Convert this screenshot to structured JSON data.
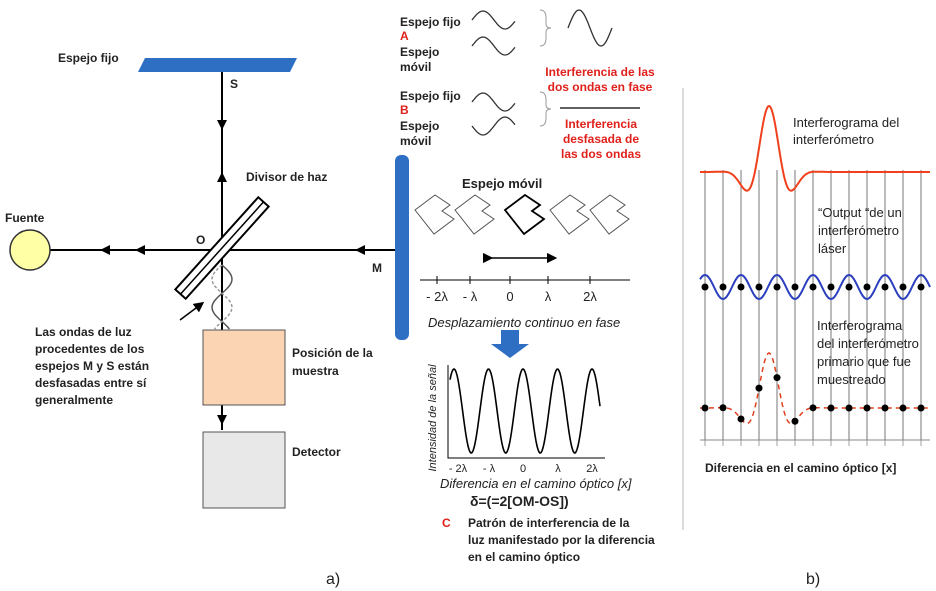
{
  "panel_a": {
    "fixed_mirror": "Espejo fijo",
    "s": "S",
    "beam_splitter": "Divisor de haz",
    "source": "Fuente",
    "o": "O",
    "m": "M",
    "note": {
      "lines": [
        "Las ondas de luz",
        "procedentes de los",
        "espejos M y S están",
        "desfasadas entre sí",
        "generalmente"
      ]
    },
    "sample": {
      "lines": [
        "Posición de la",
        "muestra"
      ]
    },
    "detector": "Detector",
    "case_a": {
      "fixed": "Espejo fijo",
      "letter": "A",
      "moving": {
        "lines": [
          "Espejo",
          "móvil"
        ]
      },
      "result": {
        "lines": [
          "Interferencia de las",
          "dos ondas en fase"
        ]
      }
    },
    "case_b": {
      "fixed": "Espejo fijo",
      "letter": "B",
      "moving": {
        "lines": [
          "Espejo",
          "móvil"
        ]
      },
      "result": {
        "lines": [
          "Interferencia",
          "desfasada de",
          "las dos ondas"
        ]
      }
    },
    "moving_mirror": "Espejo móvil",
    "displacement_ticks": [
      "- 2λ",
      "- λ",
      "0",
      "λ",
      "2λ"
    ],
    "displacement_caption": "Desplazamiento continuo en fase",
    "y_axis_label": "Intensidad de la señal",
    "difference_ticks": [
      "- 2λ",
      "- λ",
      "0",
      "λ",
      "2λ"
    ],
    "x_axis_label": "Diferencia en el camino óptico [x]",
    "delta": "δ=(=2[OM-OS])",
    "case_c": {
      "letter": "C",
      "text": {
        "lines": [
          "Patrón de interferencia de la",
          "luz manifestado por la diferencia",
          "en el camino óptico"
        ]
      }
    },
    "panel_label": "a)"
  },
  "panel_b": {
    "interferogram": {
      "lines": [
        "Interferograma del",
        "interferómetro"
      ]
    },
    "laser_output": {
      "lines": [
        "“Output “de un",
        "interferómetro",
        "láser"
      ]
    },
    "sampled": {
      "lines": [
        "Interferograma",
        "del interferómetro",
        "primario que fue",
        "muestreado"
      ]
    },
    "x_axis_label": "Diferencia en el camino óptico [x]",
    "panel_label": "b)"
  }
}
